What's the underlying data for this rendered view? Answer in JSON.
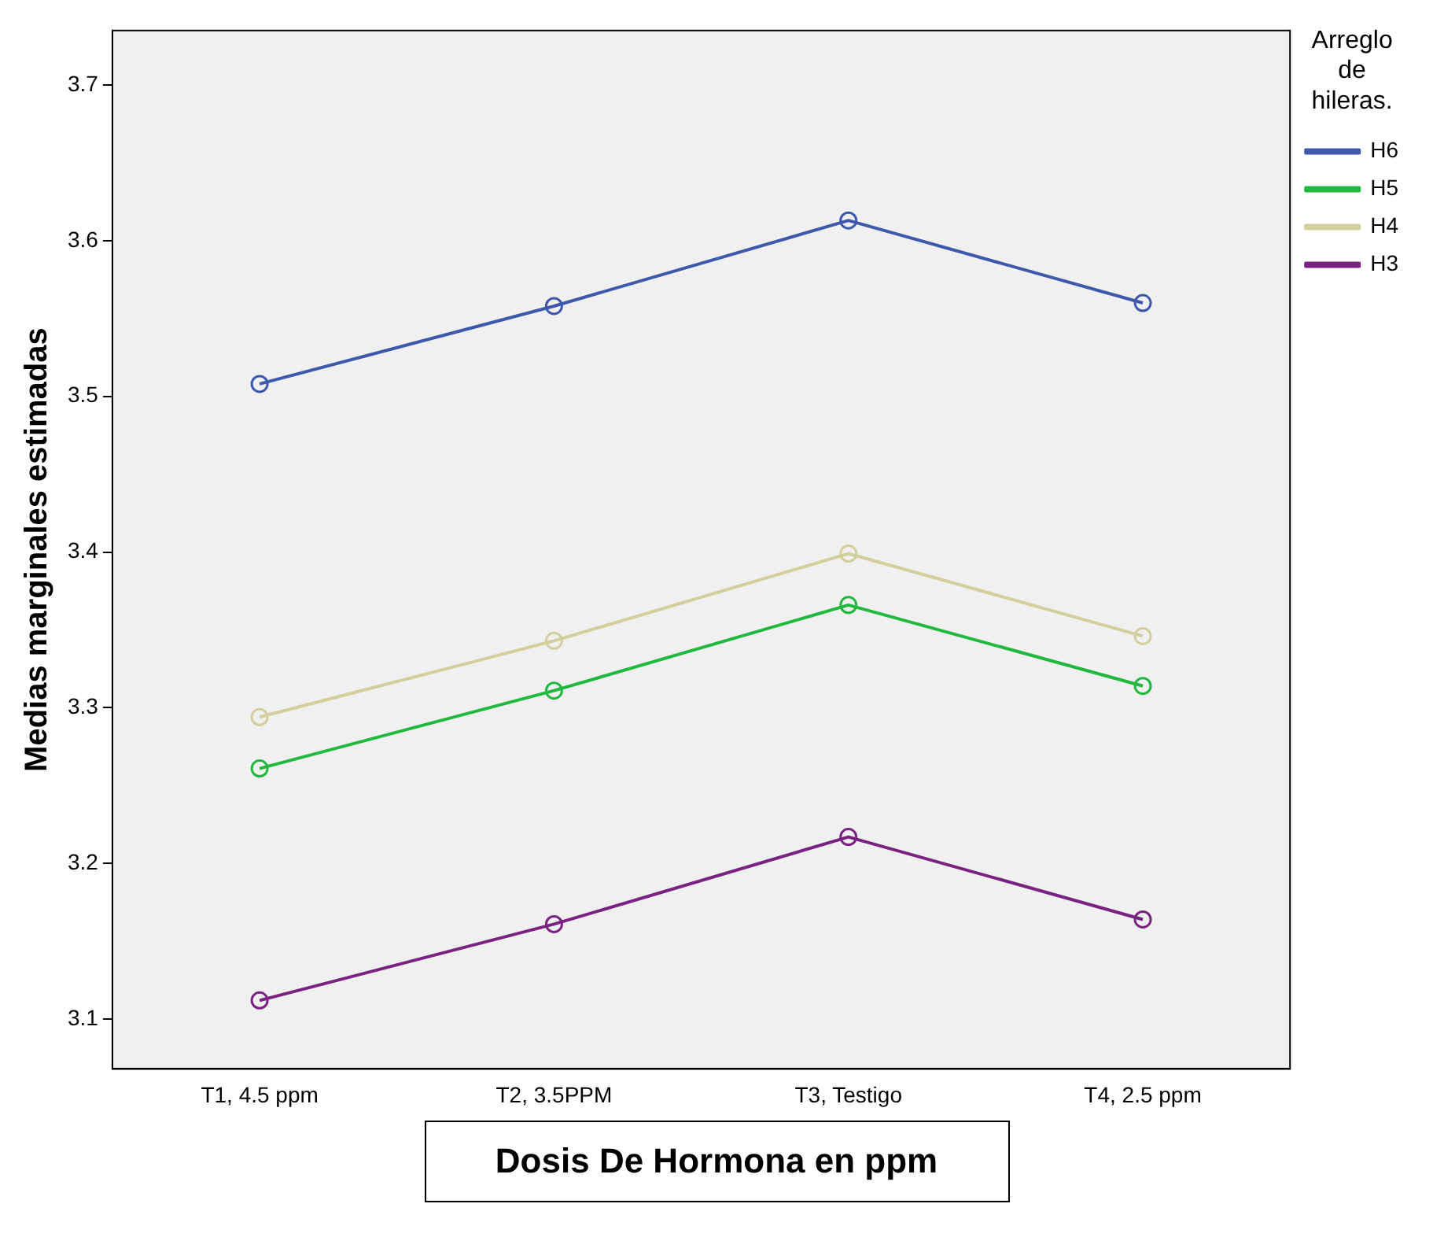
{
  "chart_data": {
    "type": "line",
    "xlabel": "Dosis De Hormona en ppm",
    "ylabel": "Medias marginales estimadas",
    "legend_title": "Arreglo de hileras.",
    "categories": [
      "T1, 4.5 ppm",
      "T2, 3.5PPM",
      "T3, Testigo",
      "T4, 2.5 ppm"
    ],
    "series": [
      {
        "name": "H6",
        "color": "#3e58ac",
        "values": [
          3.508,
          3.558,
          3.613,
          3.56
        ]
      },
      {
        "name": "H5",
        "color": "#21b83f",
        "values": [
          3.261,
          3.311,
          3.366,
          3.314
        ]
      },
      {
        "name": "H4",
        "color": "#d2cf9c",
        "values": [
          3.294,
          3.343,
          3.399,
          3.346
        ]
      },
      {
        "name": "H3",
        "color": "#7a2281",
        "values": [
          3.112,
          3.161,
          3.217,
          3.164
        ]
      }
    ],
    "ylim": [
      3.068,
      3.735
    ],
    "yticks": [
      3.1,
      3.2,
      3.3,
      3.4,
      3.5,
      3.6,
      3.7
    ],
    "grid": false,
    "legend": "right",
    "marker": "circle",
    "line_style": "solid"
  }
}
